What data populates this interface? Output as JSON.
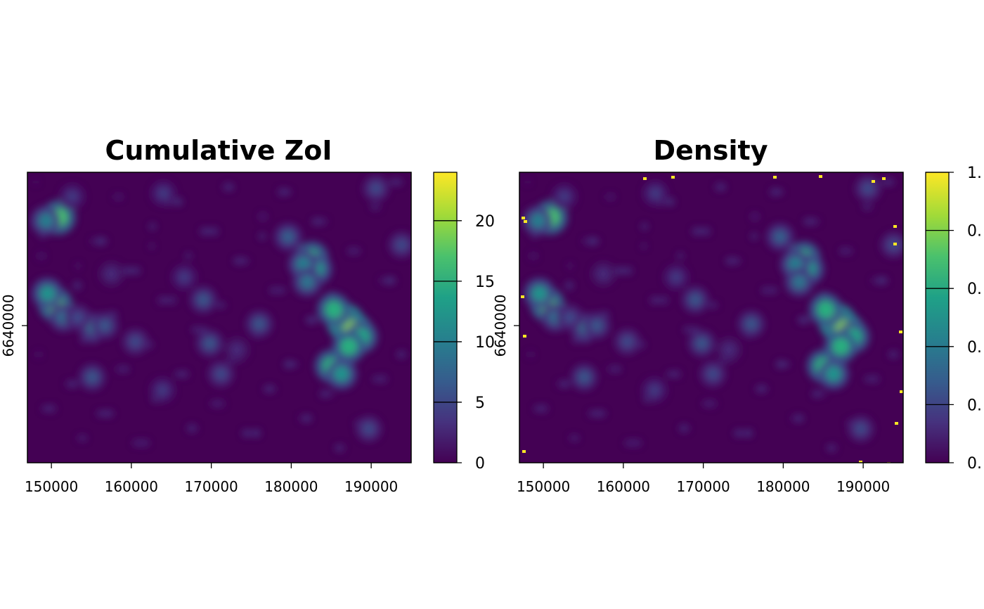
{
  "chart_data": [
    {
      "type": "heatmap",
      "title": "Cumulative ZoI",
      "xlabel": "",
      "ylabel": "",
      "x_ticks": [
        150000,
        160000,
        170000,
        180000,
        190000
      ],
      "y_ticks": [
        6640000
      ],
      "xlim": [
        147000,
        195000
      ],
      "colorbar": {
        "min": 0,
        "max": 24,
        "ticks": [
          0,
          5,
          10,
          15,
          20
        ],
        "tick_labels": [
          "0",
          "5",
          "10",
          "15",
          "20"
        ],
        "colormap": "viridis"
      },
      "hotspots": [
        {
          "x": 186800,
          "y": 6640200,
          "value": 22
        },
        {
          "x": 187800,
          "y": 6639700,
          "value": 20
        },
        {
          "x": 185300,
          "y": 6641000,
          "value": 15
        },
        {
          "x": 188800,
          "y": 6639300,
          "value": 14
        },
        {
          "x": 187200,
          "y": 6638700,
          "value": 15
        },
        {
          "x": 185000,
          "y": 6637500,
          "value": 15
        },
        {
          "x": 186300,
          "y": 6637000,
          "value": 12
        },
        {
          "x": 182600,
          "y": 6644200,
          "value": 15
        },
        {
          "x": 183200,
          "y": 6643500,
          "value": 12
        },
        {
          "x": 181500,
          "y": 6643800,
          "value": 10
        },
        {
          "x": 179600,
          "y": 6645500,
          "value": 7
        },
        {
          "x": 182000,
          "y": 6642700,
          "value": 9
        },
        {
          "x": 150500,
          "y": 6641300,
          "value": 17
        },
        {
          "x": 149500,
          "y": 6642000,
          "value": 12
        },
        {
          "x": 151500,
          "y": 6640500,
          "value": 8
        },
        {
          "x": 150900,
          "y": 6646700,
          "value": 17
        },
        {
          "x": 149300,
          "y": 6646500,
          "value": 10
        },
        {
          "x": 155200,
          "y": 6639900,
          "value": 8
        },
        {
          "x": 156700,
          "y": 6640000,
          "value": 6
        },
        {
          "x": 153300,
          "y": 6640500,
          "value": 5
        },
        {
          "x": 155100,
          "y": 6636800,
          "value": 6
        },
        {
          "x": 160500,
          "y": 6639000,
          "value": 5
        },
        {
          "x": 169000,
          "y": 6641600,
          "value": 6
        },
        {
          "x": 169800,
          "y": 6638900,
          "value": 6
        },
        {
          "x": 171200,
          "y": 6637000,
          "value": 5
        },
        {
          "x": 176000,
          "y": 6640100,
          "value": 6
        },
        {
          "x": 163900,
          "y": 6636000,
          "value": 4
        },
        {
          "x": 189700,
          "y": 6633600,
          "value": 5
        },
        {
          "x": 152600,
          "y": 6648000,
          "value": 4
        },
        {
          "x": 164000,
          "y": 6648200,
          "value": 4
        },
        {
          "x": 193800,
          "y": 6645000,
          "value": 5
        },
        {
          "x": 190600,
          "y": 6648500,
          "value": 5
        },
        {
          "x": 166600,
          "y": 6643000,
          "value": 4
        },
        {
          "x": 157500,
          "y": 6643200,
          "value": 3
        },
        {
          "x": 173200,
          "y": 6638500,
          "value": 3
        }
      ]
    },
    {
      "type": "heatmap",
      "title": "Density",
      "xlabel": "",
      "ylabel": "",
      "x_ticks": [
        150000,
        160000,
        170000,
        180000,
        190000
      ],
      "y_ticks": [
        6640000
      ],
      "xlim": [
        147000,
        195000
      ],
      "colorbar": {
        "min": 0,
        "max": 1,
        "ticks": [
          0,
          0.2,
          0.4,
          0.6,
          0.8,
          1
        ],
        "tick_labels": [
          "0.",
          "0.",
          "0.",
          "0.",
          "0.",
          "1."
        ],
        "colormap": "viridis"
      },
      "hotspots": "same spatial pattern as Cumulative ZoI, normalized to 0–1, with high-value artifacts along raster edges"
    }
  ],
  "labels": {
    "y_tick_text": "6640000"
  }
}
